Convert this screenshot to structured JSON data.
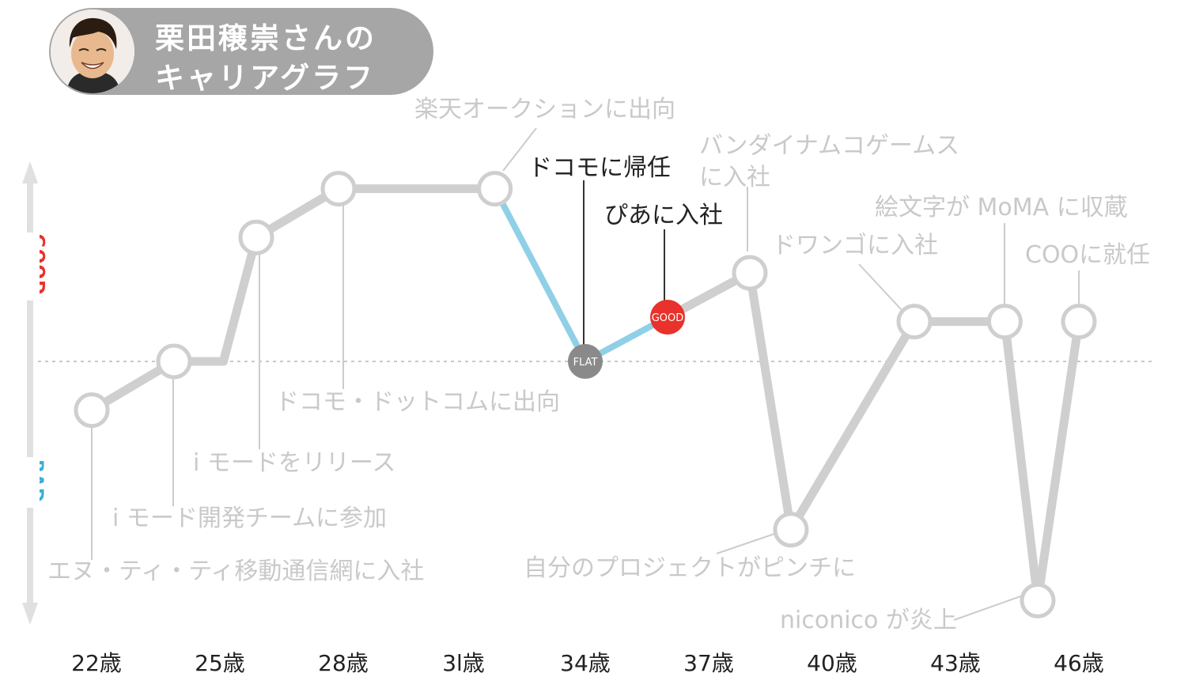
{
  "title": {
    "line1": "栗田穣崇さんの",
    "line2": "キャリアグラフ"
  },
  "axis": {
    "good_label": "GOOD",
    "bad_label": "BAD"
  },
  "colors": {
    "gray_line": "#cfcfcf",
    "blue_line": "#8fd0e6",
    "good_red": "#e8322b",
    "flat_gray": "#8a8a8a",
    "bad_blue": "#3aaed8",
    "pill": "#a6a6a6",
    "faded_text": "#c9c9c9",
    "dark_text": "#222222"
  },
  "chart_data": {
    "type": "line",
    "title": "栗田穣崇さんのキャリアグラフ",
    "x_ticks": [
      "22歳",
      "25歳",
      "28歳",
      "3l歳",
      "34歳",
      "37歳",
      "40歳",
      "43歳",
      "46歳"
    ],
    "y_positive_label": "GOOD",
    "y_negative_label": "BAD",
    "points": [
      {
        "age": 22,
        "level": -1.1,
        "label": "エヌ・ティ・ティ移動通信網に入社",
        "marker": "circle"
      },
      {
        "age": 24,
        "level": 0.0,
        "label": "i モード開発チームに参加",
        "marker": "circle"
      },
      {
        "age": 25.2,
        "level": 0.0,
        "label": "",
        "marker": "none"
      },
      {
        "age": 26,
        "level": 2.8,
        "label": "i モードをリリース",
        "marker": "circle"
      },
      {
        "age": 28,
        "level": 3.9,
        "label": "ドコモ・ドットコムに出向",
        "marker": "circle"
      },
      {
        "age": 31.8,
        "level": 3.9,
        "label": "楽天オークションに出向",
        "marker": "circle"
      },
      {
        "age": 34,
        "level": 0.0,
        "label": "ドコモに帰任",
        "marker": "flat"
      },
      {
        "age": 36,
        "level": 1.0,
        "label": "ぴあに入社",
        "marker": "good"
      },
      {
        "age": 38,
        "level": 2.0,
        "label": "バンダイナムコゲームス\nに入社",
        "marker": "circle"
      },
      {
        "age": 39,
        "level": -3.8,
        "label": "自分のプロジェクトがピンチに",
        "marker": "circle"
      },
      {
        "age": 42,
        "level": 0.9,
        "label": "ドワンゴに入社",
        "marker": "circle"
      },
      {
        "age": 44.2,
        "level": 0.9,
        "label": "絵文字が MoMA に収蔵",
        "marker": "circle"
      },
      {
        "age": 45,
        "level": -5.4,
        "label": "niconico が炎上",
        "marker": "circle"
      },
      {
        "age": 46,
        "level": 0.9,
        "label": "COOに就任",
        "marker": "circle"
      }
    ],
    "highlighted_segment": "楽天オークションに出向 → ドコモに帰任 → ぴあに入社",
    "marker_labels": {
      "flat": "FLAT",
      "good": "GOOD"
    },
    "zero_line": "dotted"
  }
}
